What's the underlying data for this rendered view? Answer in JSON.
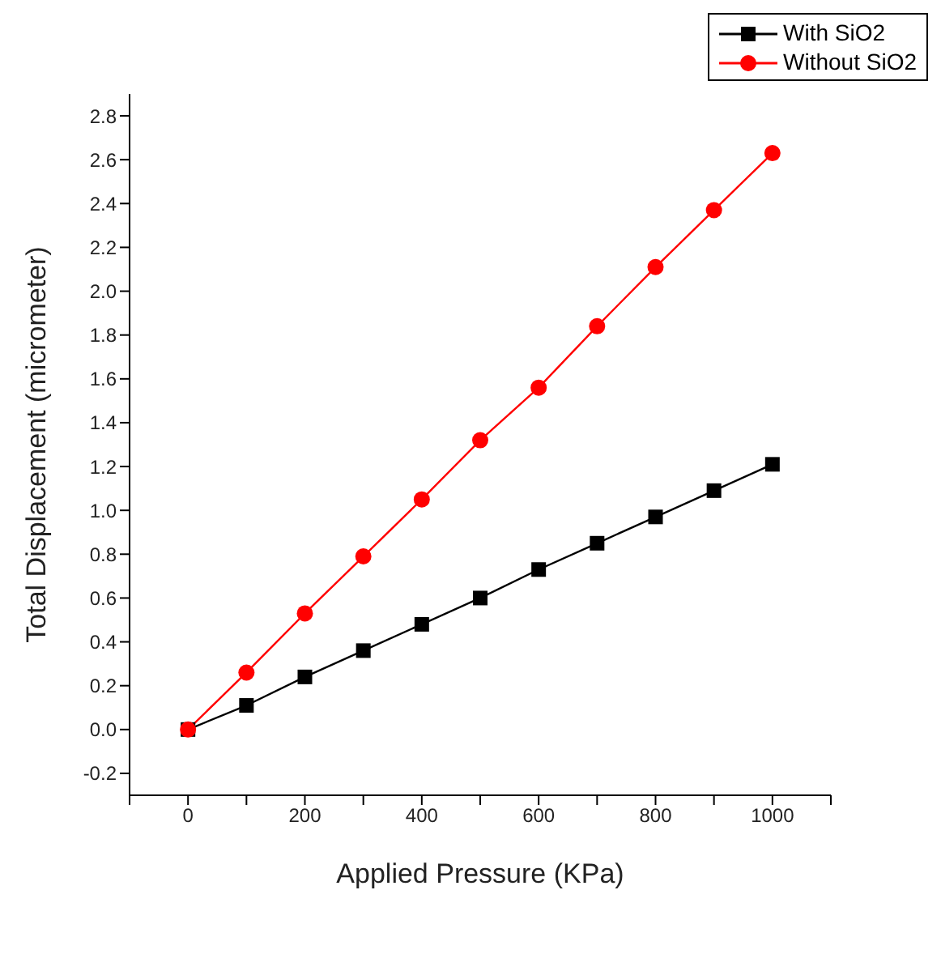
{
  "chart_data": {
    "type": "line",
    "xlabel": "Applied Pressure (KPa)",
    "ylabel": "Total Displacement (micrometer)",
    "x": [
      0,
      100,
      200,
      300,
      400,
      500,
      600,
      700,
      800,
      900,
      1000
    ],
    "series": [
      {
        "name": "With SiO2",
        "color": "#000000",
        "marker": "square",
        "values": [
          0,
          0.11,
          0.24,
          0.36,
          0.48,
          0.6,
          0.73,
          0.85,
          0.97,
          1.09,
          1.21
        ]
      },
      {
        "name": "Without SiO2",
        "color": "#ff0000",
        "marker": "circle",
        "values": [
          0,
          0.26,
          0.53,
          0.79,
          1.05,
          1.32,
          1.56,
          1.84,
          2.11,
          2.37,
          2.63
        ]
      }
    ],
    "xlim": [
      -100,
      1100
    ],
    "xticks": [
      {
        "value": -100,
        "label": null
      },
      0,
      {
        "value": 100,
        "label": null
      },
      200,
      {
        "value": 300,
        "label": null
      },
      400,
      {
        "value": 500,
        "label": null
      },
      600,
      {
        "value": 700,
        "label": null
      },
      800,
      {
        "value": 900,
        "label": null
      },
      1000,
      {
        "value": 1100,
        "label": null
      }
    ],
    "ylim": [
      -0.3,
      2.9
    ],
    "yticks": [
      -0.2,
      {
        "value": 0,
        "label": "0.0"
      },
      0.2,
      0.4,
      0.6,
      0.8,
      {
        "value": 1,
        "label": "1.0"
      },
      1.2,
      1.4,
      1.6,
      1.8,
      {
        "value": 2,
        "label": "2.0"
      },
      2.2,
      2.4,
      2.6,
      2.8
    ],
    "grid": false,
    "legend": "top right",
    "line_style": "solid"
  }
}
